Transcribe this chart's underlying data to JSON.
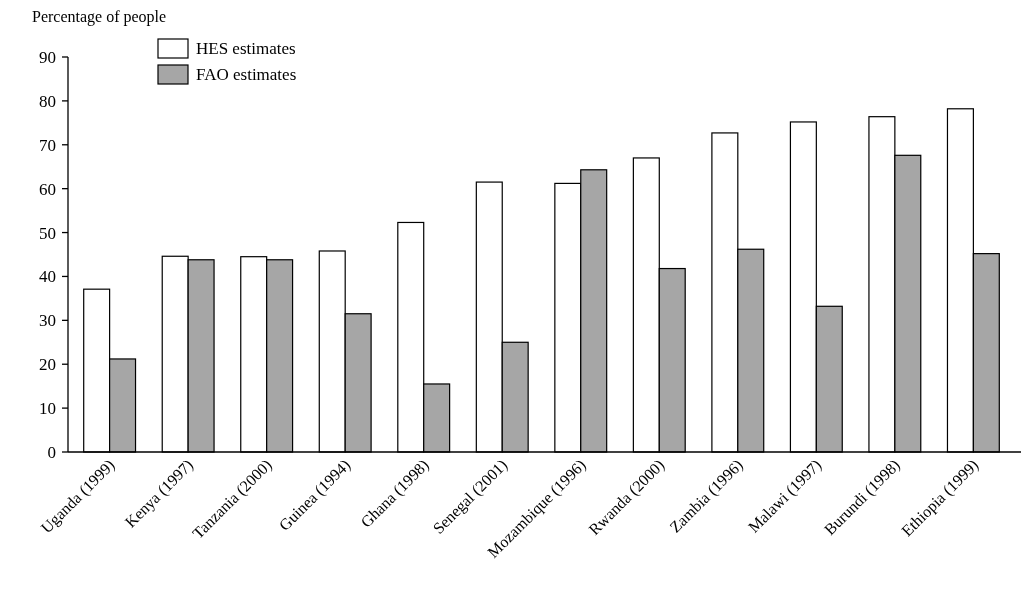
{
  "chart_data": {
    "type": "bar",
    "ylabel": "Percentage of people",
    "categories": [
      "Uganda (1999)",
      "Kenya (1997)",
      "Tanzania (2000)",
      "Guinea (1994)",
      "Ghana (1998)",
      "Senegal (2001)",
      "Mozambique (1996)",
      "Rwanda (2000)",
      "Zambia (1996)",
      "Malawi (1997)",
      "Burundi (1998)",
      "Ethiopia (1999)"
    ],
    "series": [
      {
        "name": "HES estimates",
        "color": "#ffffff",
        "values": [
          37.1,
          44.6,
          44.5,
          45.8,
          52.3,
          61.5,
          61.2,
          67.0,
          72.7,
          75.2,
          76.4,
          78.2
        ]
      },
      {
        "name": "FAO estimates",
        "color": "#a6a6a6",
        "values": [
          21.2,
          43.8,
          43.8,
          31.5,
          15.5,
          25.0,
          64.3,
          41.8,
          46.2,
          33.2,
          67.6,
          45.2
        ]
      }
    ],
    "ylim": [
      0,
      90
    ],
    "yticks": [
      0,
      10,
      20,
      30,
      40,
      50,
      60,
      70,
      80,
      90
    ],
    "grid": false,
    "legend": "top left"
  }
}
